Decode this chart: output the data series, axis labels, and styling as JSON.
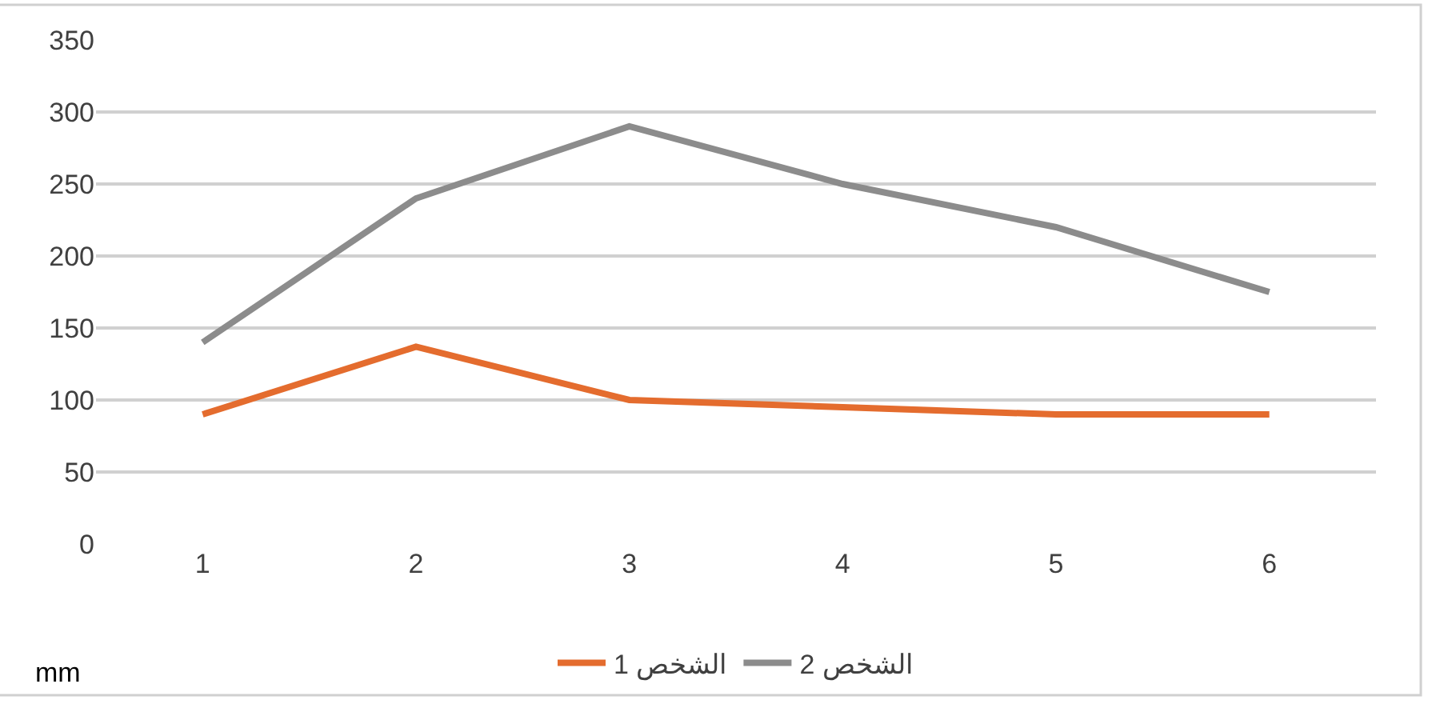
{
  "chart_data": {
    "type": "line",
    "categories": [
      "1",
      "2",
      "3",
      "4",
      "5",
      "6"
    ],
    "series": [
      {
        "name": "الشخص 1",
        "color": "#e46c2e",
        "values": [
          90,
          137,
          100,
          95,
          90,
          90
        ]
      },
      {
        "name": "الشخص 2",
        "color": "#8c8c8c",
        "values": [
          140,
          240,
          290,
          250,
          220,
          175
        ]
      }
    ],
    "ylim": [
      0,
      350
    ],
    "yticks": [
      0,
      50,
      100,
      150,
      200,
      250,
      300,
      350
    ],
    "grid": "y",
    "legend": "bottom",
    "marker": "none",
    "line_style": "solid",
    "annotations": [
      "mm"
    ]
  }
}
